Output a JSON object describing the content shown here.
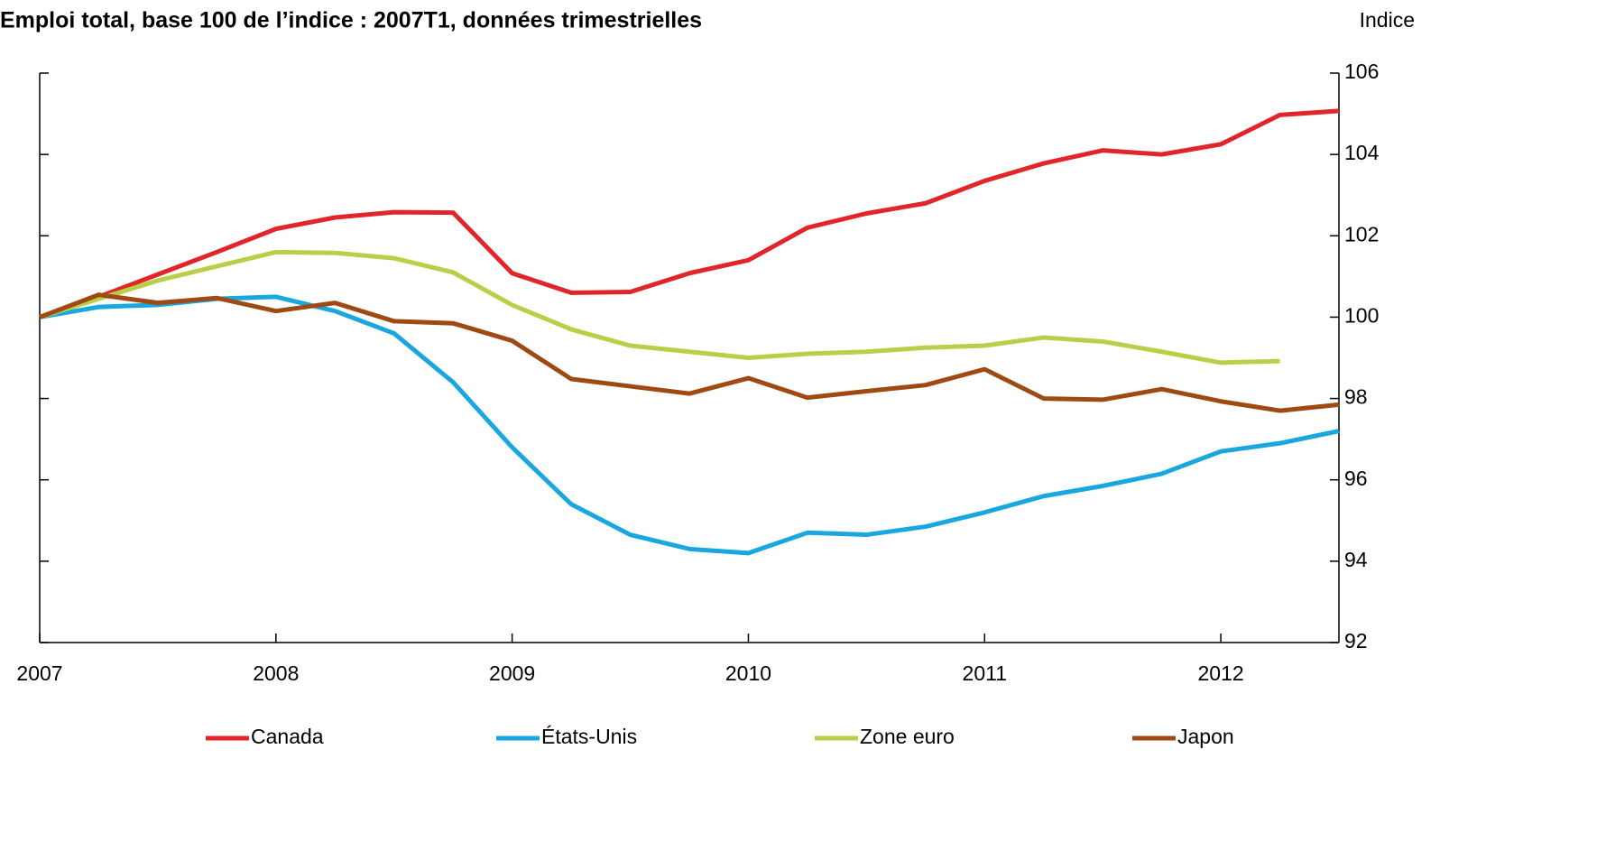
{
  "chart_data": {
    "type": "line",
    "title": "Emploi total, base 100 de l’indice : 2007T1, données trimestrielles",
    "y_axis_label": "Indice",
    "x": [
      2007,
      2007.25,
      2007.5,
      2007.75,
      2008,
      2008.25,
      2008.5,
      2008.75,
      2009,
      2009.25,
      2009.5,
      2009.75,
      2010,
      2010.25,
      2010.5,
      2010.75,
      2011,
      2011.25,
      2011.5,
      2011.75,
      2012,
      2012.25,
      2012.5
    ],
    "xlim": [
      2007,
      2012.5
    ],
    "xticks": [
      2007,
      2008,
      2009,
      2010,
      2011,
      2012
    ],
    "ylim": [
      92,
      106
    ],
    "yticks": [
      92,
      94,
      96,
      98,
      100,
      102,
      104,
      106
    ],
    "grid": false,
    "legend": "bottom",
    "series": [
      {
        "name": "Canada",
        "color": "#e0262a",
        "values": [
          100,
          100.5,
          101.05,
          101.6,
          102.17,
          102.45,
          102.58,
          102.57,
          101.08,
          100.6,
          100.62,
          101.08,
          101.4,
          102.2,
          102.55,
          102.8,
          103.35,
          103.78,
          104.1,
          104.0,
          104.25,
          104.97,
          105.07
        ]
      },
      {
        "name": "États-Unis",
        "color": "#1aa7e0",
        "values": [
          100,
          100.25,
          100.3,
          100.45,
          100.5,
          100.15,
          99.6,
          98.4,
          96.8,
          95.4,
          94.65,
          94.3,
          94.2,
          94.7,
          94.65,
          94.85,
          95.2,
          95.6,
          95.85,
          96.15,
          96.7,
          96.9,
          97.2
        ]
      },
      {
        "name": "Zone euro",
        "color": "#b9cf48",
        "values": [
          100,
          100.45,
          100.9,
          101.25,
          101.6,
          101.58,
          101.45,
          101.1,
          100.3,
          99.7,
          99.3,
          99.15,
          99.0,
          99.1,
          99.15,
          99.25,
          99.3,
          99.5,
          99.4,
          99.15,
          98.88,
          98.92,
          null
        ]
      },
      {
        "name": "Japon",
        "color": "#9e4a12",
        "values": [
          100,
          100.55,
          100.35,
          100.47,
          100.15,
          100.35,
          99.9,
          99.85,
          99.42,
          98.48,
          98.3,
          98.12,
          98.5,
          98.02,
          98.18,
          98.33,
          98.72,
          98.0,
          97.97,
          98.23,
          97.93,
          97.7,
          97.85
        ]
      }
    ]
  }
}
